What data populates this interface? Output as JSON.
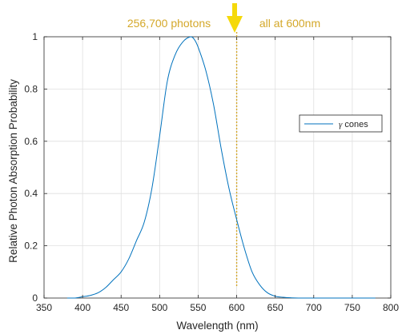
{
  "annotations": {
    "left_text": "256,700 photons",
    "right_text": "all at 600nm"
  },
  "colors": {
    "series": "#0072bd",
    "annotation": "#d4a82a",
    "arrow": "#f5d90a",
    "grid": "#dfdfdf",
    "axis": "#262626"
  },
  "chart_data": {
    "type": "line",
    "xlabel": "Wavelength (nm)",
    "ylabel": "Relative Photon Absorption Probability",
    "xlim": [
      350,
      800
    ],
    "ylim": [
      0,
      1
    ],
    "xticks": [
      350,
      400,
      450,
      500,
      550,
      600,
      650,
      700,
      750,
      800
    ],
    "yticks": [
      0,
      0.2,
      0.4,
      0.6,
      0.8,
      1
    ],
    "ytick_labels": [
      "0",
      "0.2",
      "0.4",
      "0.6",
      "0.8",
      "1"
    ],
    "grid": true,
    "legend_position": "right",
    "marker_line": {
      "x": 600,
      "style": "dotted"
    },
    "series": [
      {
        "name": "cones",
        "name_prefix": "γ",
        "x": [
          380,
          390,
          400,
          410,
          420,
          430,
          440,
          450,
          460,
          470,
          480,
          490,
          500,
          510,
          520,
          530,
          540,
          545,
          550,
          560,
          570,
          580,
          590,
          600,
          610,
          620,
          630,
          640,
          650,
          660,
          670,
          680,
          700,
          720,
          740,
          760,
          780
        ],
        "y": [
          0.0,
          0.0,
          0.005,
          0.01,
          0.02,
          0.04,
          0.07,
          0.1,
          0.15,
          0.22,
          0.29,
          0.42,
          0.62,
          0.83,
          0.93,
          0.98,
          1.0,
          0.99,
          0.96,
          0.87,
          0.74,
          0.57,
          0.42,
          0.3,
          0.19,
          0.1,
          0.05,
          0.02,
          0.007,
          0.003,
          0.001,
          0.0,
          0.0,
          0.0,
          0.0,
          0.0,
          0.0
        ]
      }
    ]
  }
}
